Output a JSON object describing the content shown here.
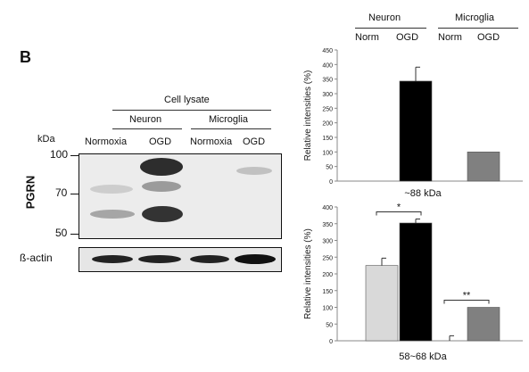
{
  "panel_label": "B",
  "blot": {
    "cell_lysate": "Cell lysate",
    "neuron": "Neuron",
    "microglia": "Microglia",
    "kda": "kDa",
    "lanes": [
      "Normoxia",
      "OGD",
      "Normoxia",
      "OGD"
    ],
    "markers": [
      "100",
      "70",
      "50"
    ],
    "protein": "PGRN",
    "loading_control": "ß-actin"
  },
  "chart_header": {
    "neuron": "Neuron",
    "microglia": "Microglia",
    "columns": [
      "Norm",
      "OGD",
      "Norm",
      "OGD"
    ]
  },
  "chart_data": [
    {
      "type": "bar",
      "categories": [
        "Neuron Norm",
        "Neuron OGD",
        "Microglia Norm",
        "Microglia OGD"
      ],
      "values": [
        0,
        343,
        0,
        100
      ],
      "error": [
        0,
        48,
        0,
        0
      ],
      "colors": [
        "#d9d9d9",
        "#000000",
        "#d9d9d9",
        "#808080"
      ],
      "ylabel": "Relative intensities (%)",
      "ylim": [
        0,
        450
      ],
      "yticks": [
        "0",
        "50",
        "100",
        "150",
        "200",
        "250",
        "300",
        "350",
        "400",
        "450"
      ],
      "xlabel": "~88 kDa"
    },
    {
      "type": "bar",
      "categories": [
        "Neuron Norm",
        "Neuron OGD",
        "Microglia Norm",
        "Microglia OGD"
      ],
      "values": [
        225,
        352,
        0,
        100
      ],
      "error": [
        22,
        12,
        15,
        0
      ],
      "colors": [
        "#d9d9d9",
        "#000000",
        "#d9d9d9",
        "#808080"
      ],
      "ylabel": "Relative intensities (%)",
      "ylim": [
        0,
        400
      ],
      "yticks": [
        "0",
        "50",
        "100",
        "150",
        "200",
        "250",
        "300",
        "350",
        "400"
      ],
      "xlabel": "58~68 kDa",
      "significance": [
        {
          "between": [
            0,
            1
          ],
          "label": "*"
        },
        {
          "between": [
            2,
            3
          ],
          "label": "**"
        }
      ]
    }
  ]
}
